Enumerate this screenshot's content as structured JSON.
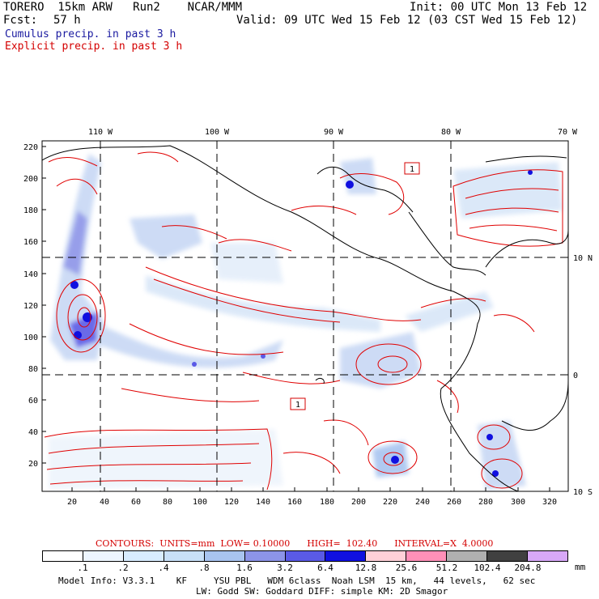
{
  "header": {
    "model": "TORERO  15km ARW   Run2    NCAR/MMM",
    "init": "Init: 00 UTC Mon 13 Feb 12",
    "fcst_label": "Fcst:",
    "fcst_value": "57 h",
    "valid": "Valid: 09 UTC Wed 15 Feb 12 (03 CST Wed 15 Feb 12)",
    "cumulus_label": "Cumulus precip. in past 3 h",
    "explicit_label": "Explicit precip. in past 3 h"
  },
  "map": {
    "lon_labels": [
      "110 W",
      "100 W",
      "90 W",
      "80 W",
      "70 W"
    ],
    "lat_labels": [
      "10 N",
      "0",
      "10 S"
    ],
    "y_ticks": [
      "220",
      "200",
      "180",
      "160",
      "140",
      "120",
      "100",
      "80",
      "60",
      "40",
      "20"
    ],
    "x_ticks": [
      "20",
      "40",
      "60",
      "80",
      "100",
      "120",
      "140",
      "160",
      "180",
      "200",
      "220",
      "240",
      "260",
      "280",
      "300",
      "320"
    ],
    "box_labels": [
      "1",
      "1"
    ]
  },
  "contours_line": "CONTOURS:  UNITS=mm  LOW= 0.10000      HIGH=  102.40      INTERVAL=X  4.0000",
  "colorbar": {
    "labels": [
      ".1",
      ".2",
      ".4",
      ".8",
      "1.6",
      "3.2",
      "6.4",
      "12.8",
      "25.6",
      "51.2",
      "102.4",
      "204.8"
    ],
    "colors": [
      "#ffffff",
      "#eef6ff",
      "#d8ecff",
      "#c8e0f8",
      "#a8c4f0",
      "#8c94e8",
      "#5a5ae6",
      "#1010e0",
      "#ffd0d8",
      "#ff90b8",
      "#b0b0b0",
      "#404040",
      "#d8a8f8"
    ],
    "unit": "mm"
  },
  "footer": {
    "line1": "Model Info: V3.3.1    KF     YSU PBL   WDM 6class  Noah LSM  15 km,   44 levels,   62 sec",
    "line2": "LW: Godd SW: Goddard DIFF: simple KM: 2D Smagor"
  }
}
